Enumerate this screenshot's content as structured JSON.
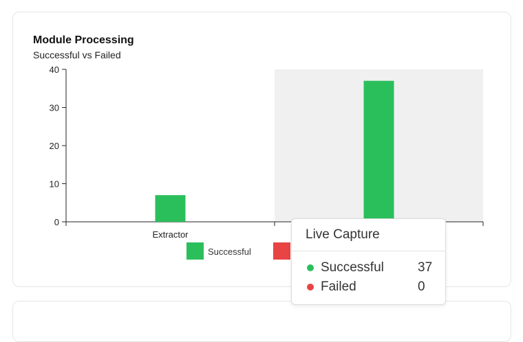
{
  "header": {
    "title": "Module Processing",
    "subtitle": "Successful vs Failed"
  },
  "chart_data": {
    "type": "bar",
    "title": "Module Processing",
    "subtitle": "Successful vs Failed",
    "categories": [
      "Extractor",
      "Live Capture"
    ],
    "x_tick_labels": [
      "Extractor"
    ],
    "series": [
      {
        "name": "Successful",
        "color": "#2bbf5c",
        "values": [
          7,
          37
        ]
      },
      {
        "name": "Failed",
        "color": "#e84444",
        "values": [
          0,
          0
        ]
      }
    ],
    "ylim": [
      0,
      40
    ],
    "yticks": [
      0,
      10,
      20,
      30,
      40
    ],
    "grid": false,
    "legend_position": "bottom-center",
    "highlighted_category": "Live Capture"
  },
  "tooltip": {
    "title": "Live Capture",
    "rows": [
      {
        "label": "Successful",
        "value": "37",
        "color": "#2bbf5c"
      },
      {
        "label": "Failed",
        "value": "0",
        "color": "#e84444"
      }
    ]
  }
}
